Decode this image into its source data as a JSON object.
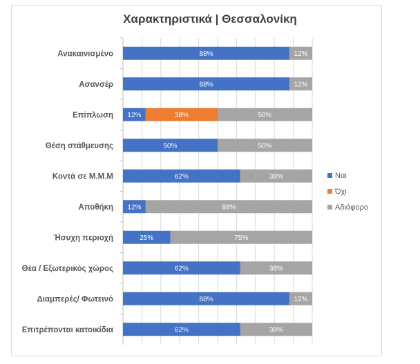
{
  "chart_data": {
    "type": "bar",
    "stacked": "percent",
    "orientation": "horizontal",
    "title": "Χαρακτηριστικά | Θεσσαλονίκη",
    "categories": [
      "Ανακαινισμένο",
      "Ασανσέρ",
      "Επίπλωση",
      "Θέση στάθμευσης",
      "Κοντά σε Μ.Μ.Μ",
      "Αποθήκη",
      "Ήσυχη περιοχή",
      "Θέα / Εξωτερικός χώρος",
      "Διαμπερές/ Φωτεινό",
      "Επιτρέπονται κατοικίδια"
    ],
    "series": [
      {
        "name": "Ναι",
        "color": "#4472c4",
        "values": [
          88,
          88,
          12,
          50,
          62,
          12,
          25,
          62,
          88,
          62
        ]
      },
      {
        "name": "Όχι",
        "color": "#ed7d31",
        "values": [
          0,
          0,
          38,
          0,
          0,
          0,
          0,
          0,
          0,
          0
        ]
      },
      {
        "name": "Αδιάφορο",
        "color": "#a5a5a5",
        "values": [
          12,
          12,
          50,
          50,
          38,
          88,
          75,
          38,
          12,
          38
        ]
      }
    ],
    "xlim": [
      0,
      100
    ],
    "grid": true,
    "legend": "right"
  }
}
